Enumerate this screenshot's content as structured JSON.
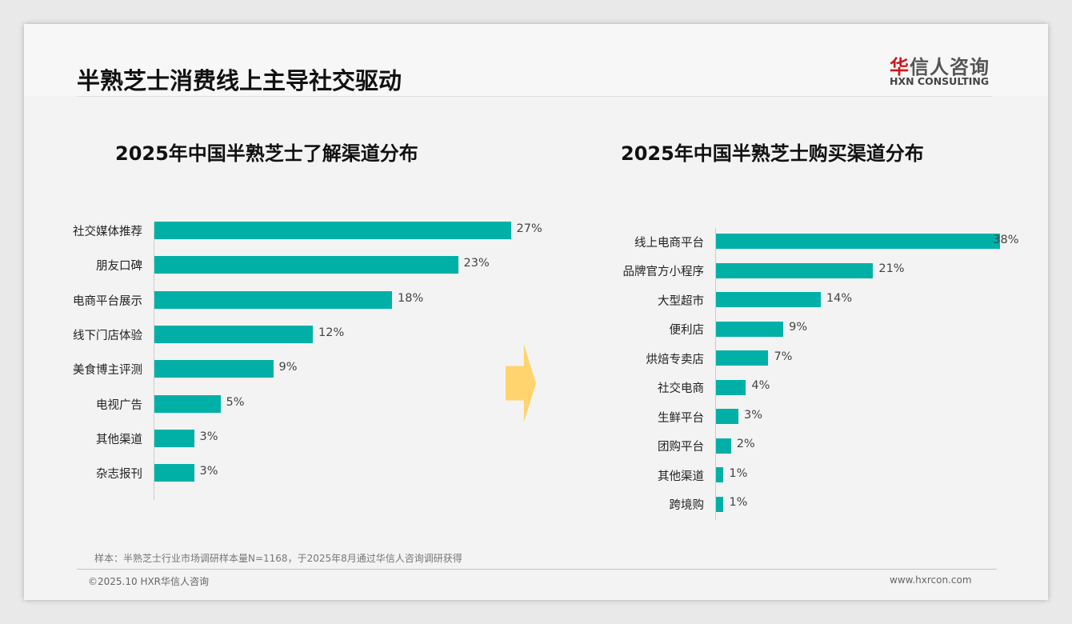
{
  "title": "半熟芝士消费线上主导社交驱动",
  "logo": {
    "cn_red": "华",
    "cn": "信人咨询",
    "en": "HXN CONSULTING"
  },
  "footer": {
    "note": "样本：半熟芝士行业市场调研样本量N=1168，于2025年8月通过华信人咨询调研获得",
    "copyright": "©2025.10 HXR华信人咨询",
    "url": "www.hxrcon.com"
  },
  "colors": {
    "bar": "#00b0a7",
    "arrow": "#ffd36e"
  },
  "chart_data": [
    {
      "type": "bar",
      "orientation": "horizontal",
      "title": "2025年中国半熟芝士了解渠道分布",
      "categories": [
        "社交媒体推荐",
        "朋友口碑",
        "电商平台展示",
        "线下门店体验",
        "美食博主评测",
        "电视广告",
        "其他渠道",
        "杂志报刊"
      ],
      "values": [
        27,
        23,
        18,
        12,
        9,
        5,
        3,
        3
      ],
      "labels": [
        "27%",
        "23%",
        "18%",
        "12%",
        "9%",
        "5%",
        "3%",
        "3%"
      ],
      "unit": "%"
    },
    {
      "type": "bar",
      "orientation": "horizontal",
      "title": "2025年中国半熟芝士购买渠道分布",
      "categories": [
        "线上电商平台",
        "品牌官方小程序",
        "大型超市",
        "便利店",
        "烘焙专卖店",
        "社交电商",
        "生鲜平台",
        "团购平台",
        "其他渠道",
        "跨境购"
      ],
      "values": [
        38,
        21,
        14,
        9,
        7,
        4,
        3,
        2,
        1,
        1
      ],
      "labels": [
        "38%",
        "21%",
        "14%",
        "9%",
        "7%",
        "4%",
        "3%",
        "2%",
        "1%",
        "1%"
      ],
      "unit": "%"
    }
  ]
}
